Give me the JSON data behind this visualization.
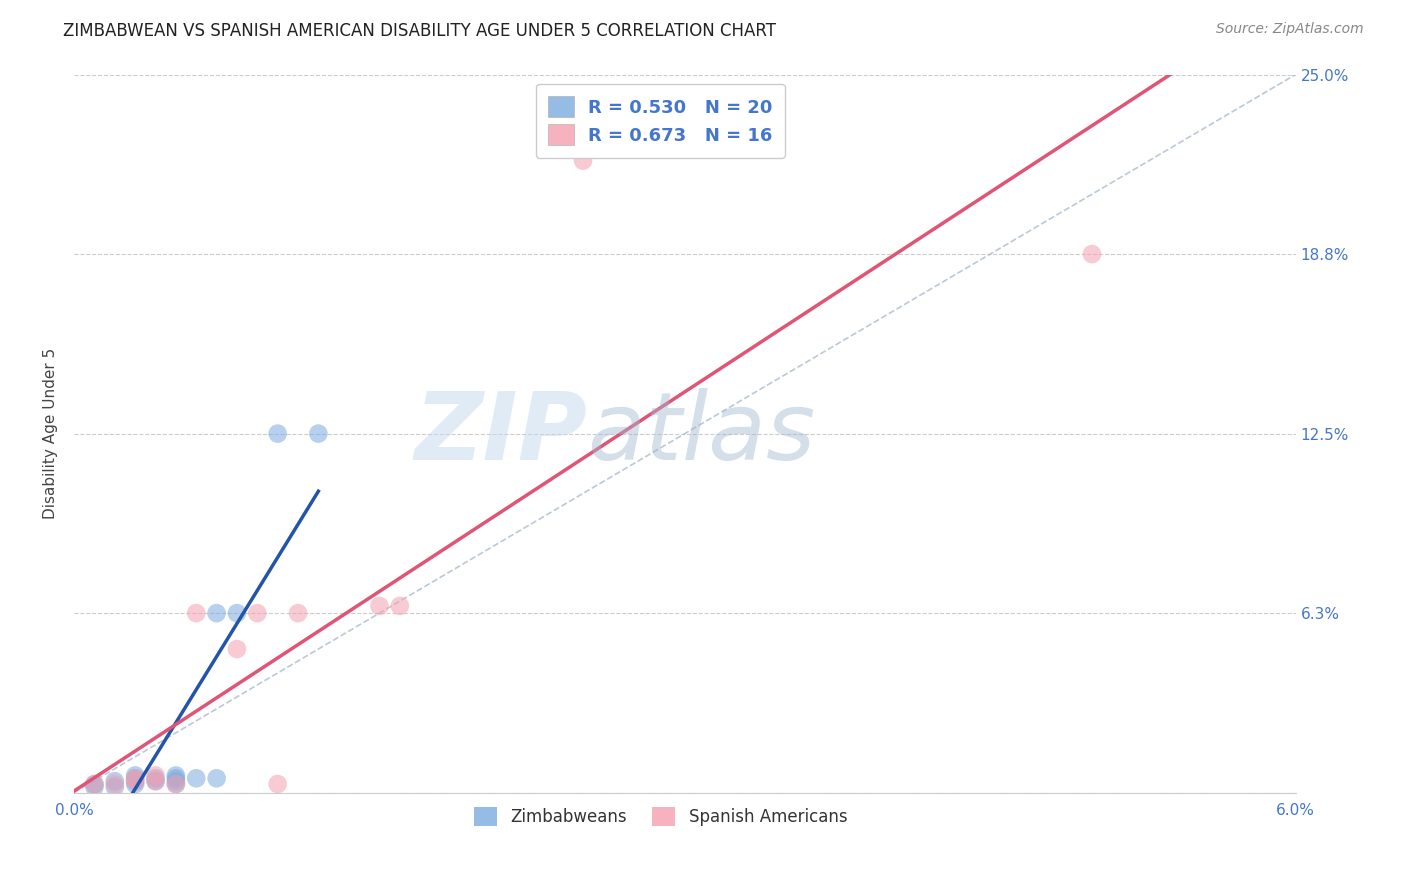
{
  "title": "ZIMBABWEAN VS SPANISH AMERICAN DISABILITY AGE UNDER 5 CORRELATION CHART",
  "source": "Source: ZipAtlas.com",
  "ylabel": "Disability Age Under 5",
  "xlim": [
    0.0,
    0.06
  ],
  "ylim": [
    0.0,
    0.25
  ],
  "xticks": [
    0.0,
    0.01,
    0.02,
    0.03,
    0.04,
    0.05,
    0.06
  ],
  "xticklabels": [
    "0.0%",
    "",
    "",
    "",
    "",
    "",
    "6.0%"
  ],
  "ytick_positions": [
    0.0,
    0.0625,
    0.125,
    0.1875,
    0.25
  ],
  "yticklabels": [
    "",
    "6.3%",
    "12.5%",
    "18.8%",
    "25.0%"
  ],
  "zimbabwean_x": [
    0.001,
    0.001,
    0.002,
    0.002,
    0.003,
    0.003,
    0.003,
    0.003,
    0.004,
    0.004,
    0.005,
    0.005,
    0.005,
    0.005,
    0.006,
    0.007,
    0.007,
    0.008,
    0.01,
    0.012
  ],
  "zimbabwean_y": [
    0.002,
    0.003,
    0.002,
    0.004,
    0.003,
    0.004,
    0.005,
    0.006,
    0.004,
    0.005,
    0.003,
    0.004,
    0.006,
    0.005,
    0.005,
    0.0625,
    0.005,
    0.0625,
    0.125,
    0.125
  ],
  "spanish_x": [
    0.001,
    0.002,
    0.003,
    0.003,
    0.004,
    0.004,
    0.005,
    0.006,
    0.008,
    0.009,
    0.01,
    0.011,
    0.015,
    0.016,
    0.025,
    0.05
  ],
  "spanish_y": [
    0.003,
    0.003,
    0.004,
    0.005,
    0.004,
    0.006,
    0.003,
    0.0625,
    0.05,
    0.0625,
    0.003,
    0.0625,
    0.065,
    0.065,
    0.22,
    0.1875
  ],
  "zim_color": "#7aabdf",
  "span_color": "#f4a0b0",
  "zim_line_color": "#2255aa",
  "span_line_color": "#e05575",
  "zim_R": 0.53,
  "zim_N": 20,
  "span_R": 0.673,
  "span_N": 16,
  "watermark_zip": "ZIP",
  "watermark_atlas": "atlas",
  "background_color": "#ffffff",
  "grid_color": "#cccccc",
  "title_fontsize": 12,
  "source_fontsize": 10
}
